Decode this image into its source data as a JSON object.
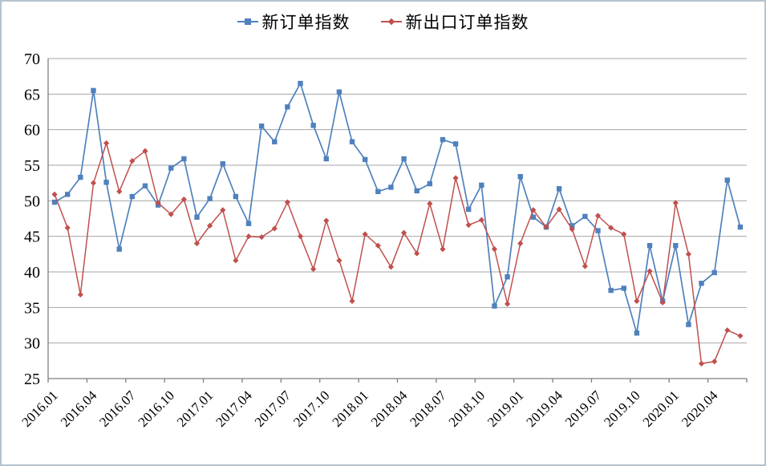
{
  "chart_data": {
    "type": "line",
    "title": "",
    "x": [
      "2016.01",
      "2016.02",
      "2016.03",
      "2016.04",
      "2016.05",
      "2016.06",
      "2016.07",
      "2016.08",
      "2016.09",
      "2016.10",
      "2016.11",
      "2016.12",
      "2017.01",
      "2017.02",
      "2017.03",
      "2017.04",
      "2017.05",
      "2017.06",
      "2017.07",
      "2017.08",
      "2017.09",
      "2017.10",
      "2017.11",
      "2017.12",
      "2018.01",
      "2018.02",
      "2018.03",
      "2018.04",
      "2018.05",
      "2018.06",
      "2018.07",
      "2018.08",
      "2018.09",
      "2018.10",
      "2018.11",
      "2018.12",
      "2019.01",
      "2019.02",
      "2019.03",
      "2019.04",
      "2019.05",
      "2019.06",
      "2019.07",
      "2019.08",
      "2019.09",
      "2019.10",
      "2019.11",
      "2019.12",
      "2020.01",
      "2020.02",
      "2020.03",
      "2020.04",
      "2020.05",
      "2020.06"
    ],
    "x_label_every": 3,
    "series": [
      {
        "name": "新订单指数",
        "color": "#4f81bd",
        "marker": "square",
        "values": [
          49.8,
          50.9,
          53.3,
          65.5,
          52.6,
          43.2,
          50.6,
          52.1,
          49.4,
          54.6,
          55.9,
          47.7,
          50.3,
          55.2,
          50.6,
          46.8,
          60.5,
          58.3,
          63.2,
          66.5,
          60.6,
          55.9,
          65.3,
          58.3,
          55.8,
          51.3,
          51.9,
          55.9,
          51.4,
          52.4,
          58.6,
          58.0,
          48.8,
          52.2,
          35.2,
          39.3,
          53.4,
          47.7,
          46.3,
          51.7,
          46.5,
          47.8,
          45.8,
          37.4,
          37.7,
          31.4,
          43.7,
          35.9,
          43.7,
          32.6,
          38.4,
          39.9,
          52.9,
          46.3
        ]
      },
      {
        "name": "新出口订单指数",
        "color": "#c0504d",
        "marker": "diamond",
        "values": [
          50.9,
          46.2,
          36.8,
          52.5,
          58.1,
          51.3,
          55.6,
          57.0,
          49.7,
          48.1,
          50.2,
          44.0,
          46.5,
          48.7,
          41.6,
          45.0,
          44.9,
          46.1,
          49.8,
          45.0,
          40.4,
          47.2,
          41.6,
          35.9,
          45.3,
          43.7,
          40.7,
          45.5,
          42.6,
          49.6,
          43.2,
          53.2,
          46.6,
          47.3,
          43.2,
          35.5,
          44.0,
          48.7,
          46.3,
          48.8,
          46.0,
          40.8,
          47.9,
          46.2,
          45.3,
          35.9,
          40.1,
          35.7,
          49.7,
          42.5,
          27.1,
          27.4,
          31.8,
          31.0
        ]
      }
    ],
    "ylim": [
      25,
      70
    ],
    "ytick_step": 5,
    "yticks": [
      "25",
      "30",
      "35",
      "40",
      "45",
      "50",
      "55",
      "60",
      "65",
      "70"
    ],
    "grid": true,
    "legend_position": "top"
  },
  "style": {
    "gridline_color": "#a6a6a6",
    "axis_color": "#7f7f7f",
    "frame_border_color": "#b5c3ce",
    "background": "#ffffff",
    "text_color": "#000000"
  }
}
